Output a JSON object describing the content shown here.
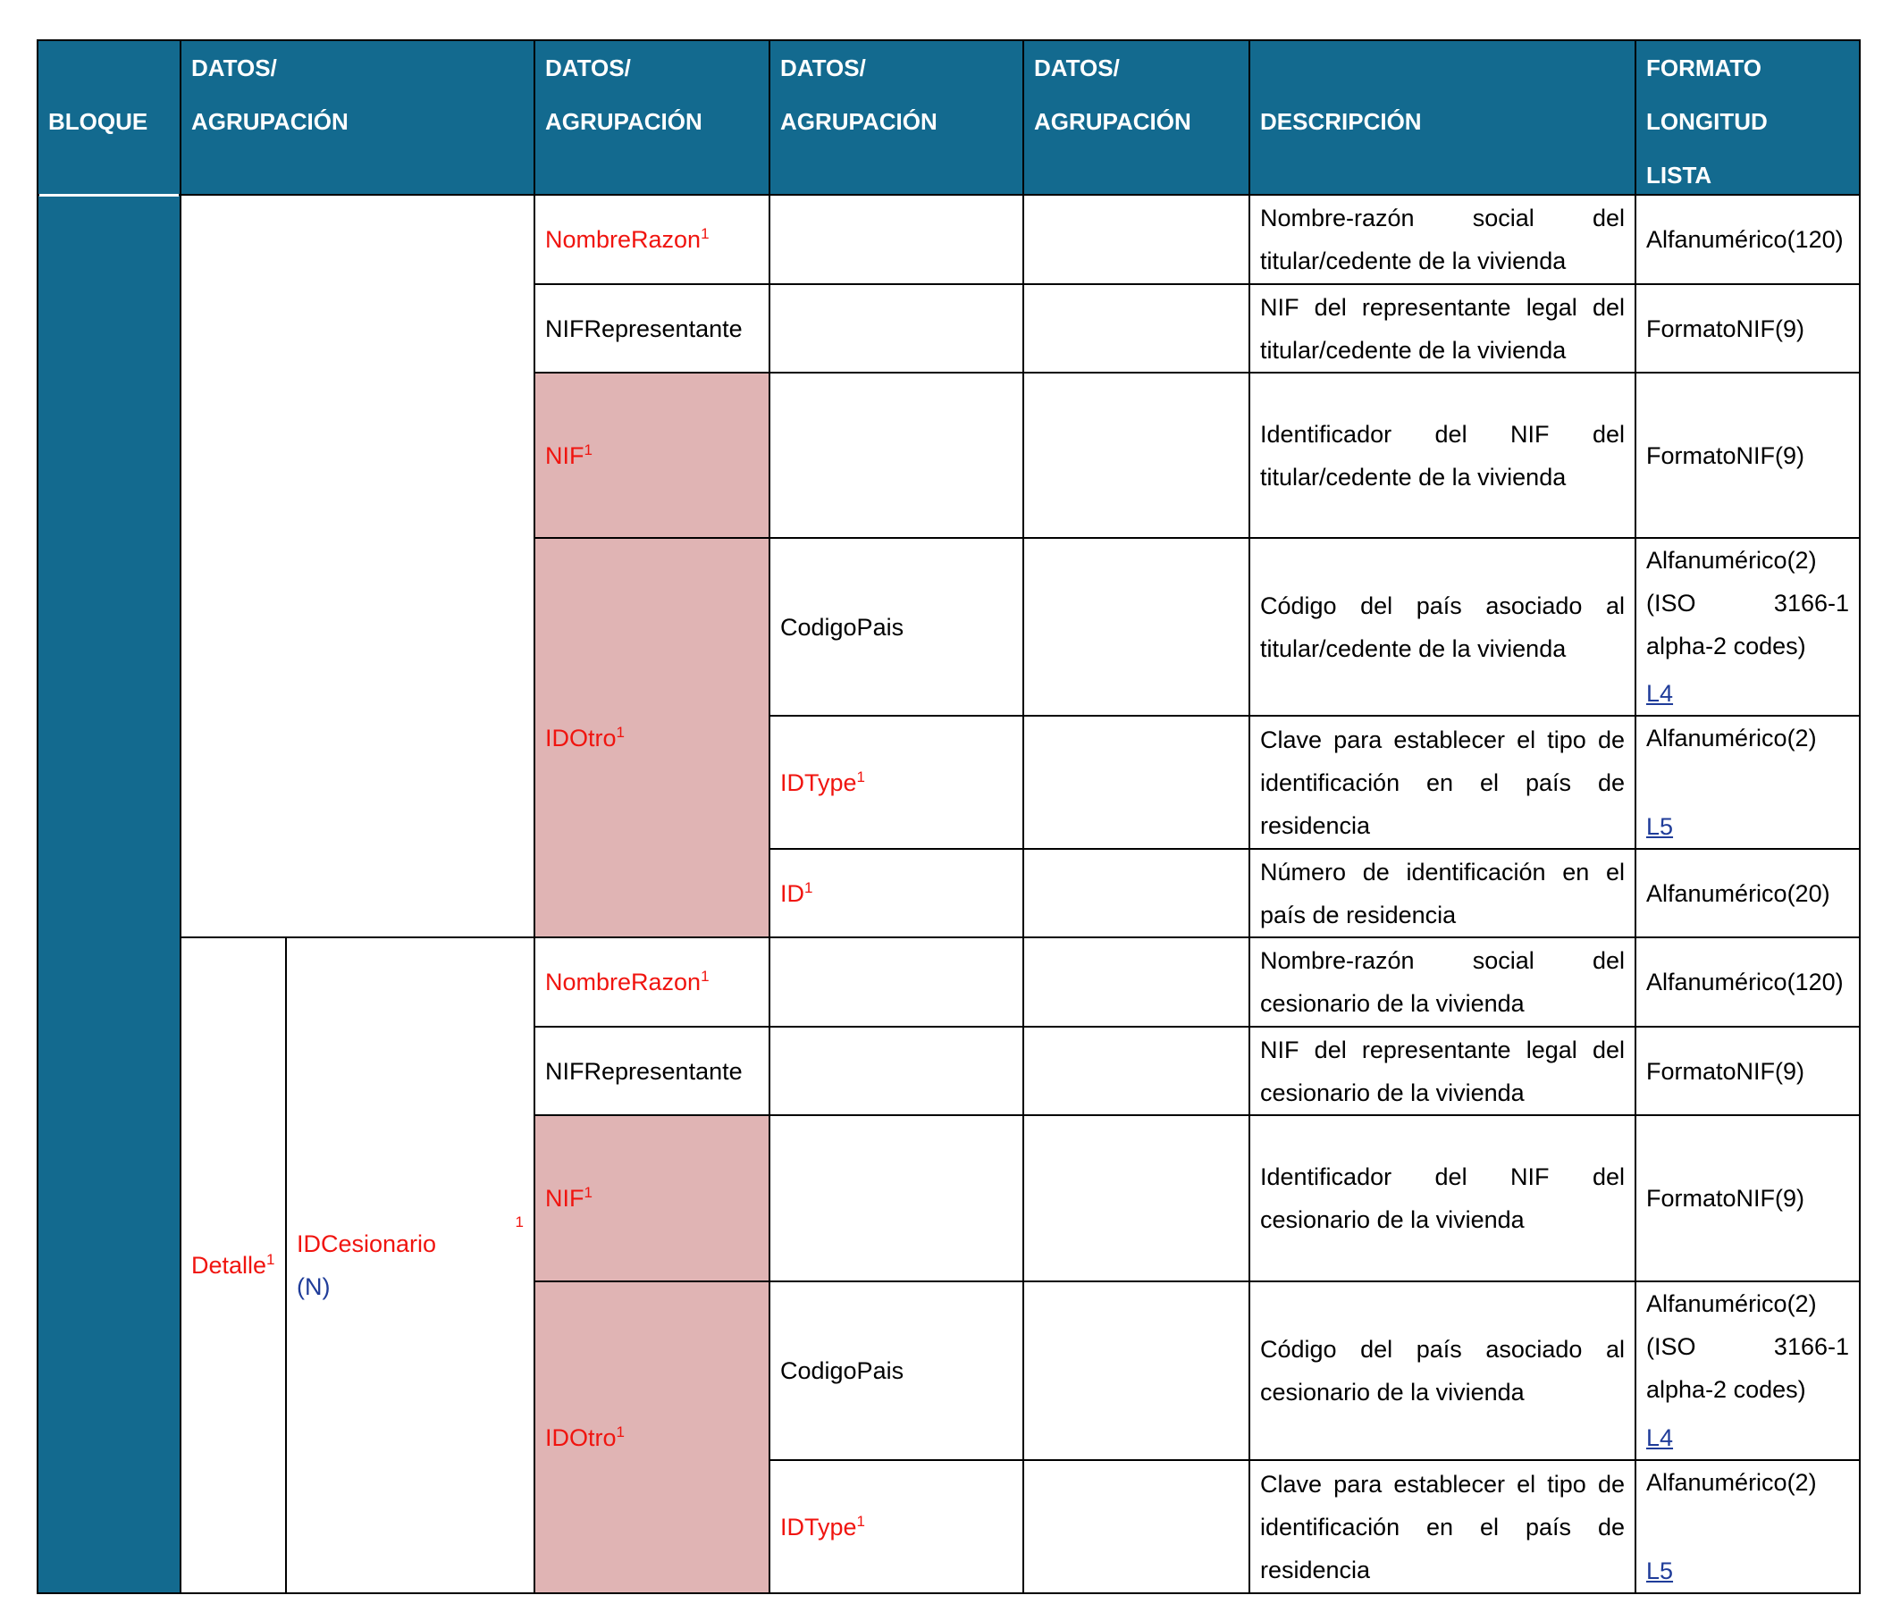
{
  "header": {
    "bloque": "BLOQUE",
    "datos": [
      [
        "DATOS/",
        "AGRUPACIÓN"
      ],
      [
        "DATOS/",
        "AGRUPACIÓN"
      ],
      [
        "DATOS/",
        "AGRUPACIÓN"
      ],
      [
        "DATOS/",
        "AGRUPACIÓN"
      ]
    ],
    "descripcion": "DESCRIPCIÓN",
    "formato": [
      "FORMATO",
      "LONGITUD",
      "LISTA"
    ]
  },
  "sections": [
    {
      "rows": [
        {
          "campo": {
            "text": "NombreRazon",
            "sup": "1"
          },
          "descripcion": "Nombre-razón social del titular/cedente de la vivienda",
          "formato": "Alfanumérico(120)"
        },
        {
          "campo": {
            "text": "NIFRepresentante"
          },
          "descripcion": "NIF del representante legal del titular/cedente de la vivienda",
          "formato": "FormatoNIF(9)"
        },
        {
          "campo": {
            "text": "NIF",
            "sup": "1",
            "highlight": true
          },
          "descripcion": "Identificador del NIF del titular/cedente de la vivienda",
          "formato": "FormatoNIF(9)"
        },
        {
          "campo": {
            "text": "IDOtro",
            "sup": "1",
            "highlight": true
          },
          "subcampo": {
            "text": "CodigoPais"
          },
          "descripcion": "Código del país asociado al titular/cedente de la vivienda",
          "formato": "Alfanumérico(2) (ISO 3166-1 alpha-2 codes)",
          "lista": "L4"
        },
        {
          "subcampo": {
            "text": "IDType",
            "sup": "1"
          },
          "descripcion": "Clave para establecer el tipo de identificación en el país de residencia",
          "formato": "Alfanumérico(2)",
          "lista": "L5"
        },
        {
          "subcampo": {
            "text": "ID",
            "sup": "1"
          },
          "descripcion": "Número de identificación en el país de residencia",
          "formato": "Alfanumérico(20)"
        }
      ]
    },
    {
      "bloque": {
        "text": "Detalle",
        "sup": "1"
      },
      "grupo": {
        "text": "IDCesionario",
        "sup": "1",
        "note": "(N)"
      },
      "rows": [
        {
          "campo": {
            "text": "NombreRazon",
            "sup": "1"
          },
          "descripcion": "Nombre-razón social del cesionario de la vivienda",
          "formato": "Alfanumérico(120)"
        },
        {
          "campo": {
            "text": "NIFRepresentante"
          },
          "descripcion": "NIF del representante legal del cesionario de la vivienda",
          "formato": "FormatoNIF(9)"
        },
        {
          "campo": {
            "text": "NIF",
            "sup": "1",
            "highlight": true
          },
          "descripcion": "Identificador del NIF del cesionario de la vivienda",
          "formato": "FormatoNIF(9)"
        },
        {
          "campo": {
            "text": "IDOtro",
            "sup": "1",
            "highlight": true
          },
          "subcampo": {
            "text": "CodigoPais"
          },
          "descripcion": "Código del país asociado al cesionario de la vivienda",
          "formato": "Alfanumérico(2) (ISO 3166-1 alpha-2 codes)",
          "lista": "L4"
        },
        {
          "subcampo": {
            "text": "IDType",
            "sup": "1"
          },
          "descripcion": "Clave para establecer el tipo de identificación en el país de residencia",
          "formato": "Alfanumérico(2)",
          "lista": "L5"
        }
      ]
    }
  ]
}
